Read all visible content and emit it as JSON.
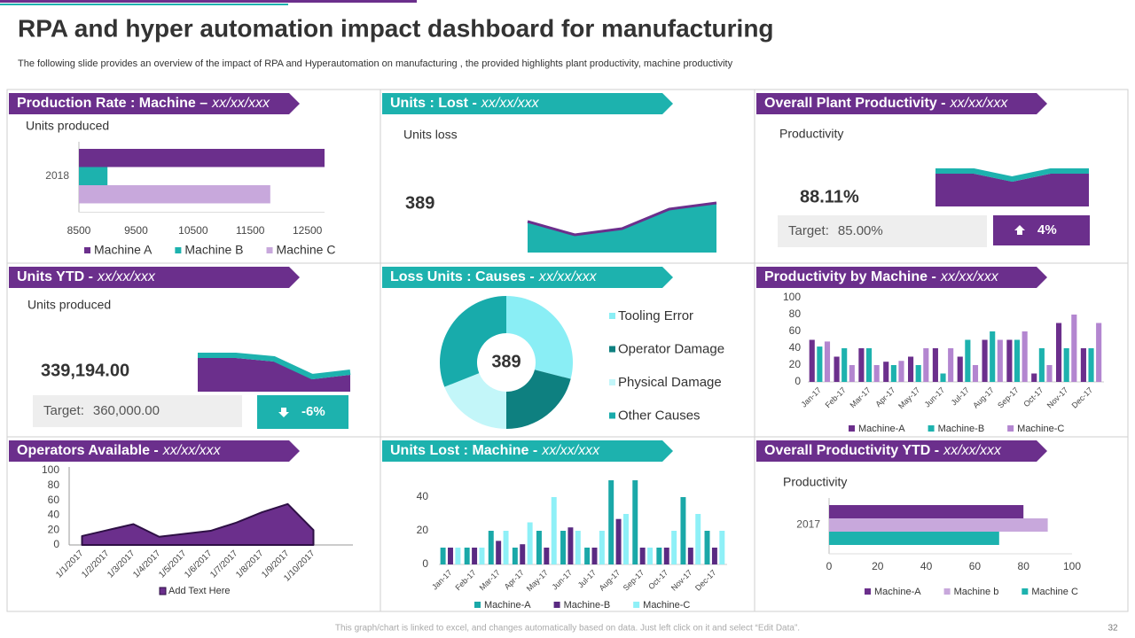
{
  "header": {
    "title": "RPA and hyper automation impact dashboard for manufacturing",
    "subtitle": "The following slide provides an overview of the impact of RPA and Hyperautomation  on manufacturing , the provided highlights plant productivity, machine productivity"
  },
  "chart_data": [
    {
      "type": "hbar",
      "title": "Production Rate : Machine –",
      "date": "xx/xx/xxx",
      "ylabel": "Units produced",
      "categories": [
        "2018"
      ],
      "series": [
        {
          "name": "Machine A",
          "color": "#6b2f8c",
          "values": [
            12800
          ]
        },
        {
          "name": "Machine B",
          "color": "#1db2ae",
          "values": [
            9000
          ]
        },
        {
          "name": "Machine C",
          "color": "#c8a8dc",
          "values": [
            11850
          ]
        }
      ],
      "xlim": [
        8500,
        12800
      ],
      "xticks": [
        8500,
        9500,
        10500,
        11500,
        12500
      ]
    },
    {
      "type": "kpi-area",
      "title": "Units : Lost -",
      "date": "xx/xx/xxx",
      "label": "Units loss",
      "kpi": "389",
      "values": [
        35,
        20,
        27,
        49,
        56
      ],
      "ylim": [
        0,
        60
      ],
      "color": "#1db2ae",
      "line_color": "#6b2f8c"
    },
    {
      "type": "kpi-area",
      "title": "Overall Plant Productivity -",
      "date": "xx/xx/xxx",
      "label": "Productivity",
      "kpi": "88.11%",
      "target_label": "Target:",
      "target": "85.00%",
      "change": "4%",
      "direction": "up",
      "badge_color": "#6b2f8c",
      "values": [
        37,
        37,
        28,
        37,
        37
      ],
      "ylim": [
        0,
        40
      ],
      "color": "#6b2f8c",
      "line_color": "#1db2ae"
    },
    {
      "type": "kpi-area",
      "title": "Units YTD -",
      "date": "xx/xx/xxx",
      "label": "Units produced",
      "kpi": "339,194.00",
      "target_label": "Target:",
      "target": "360,000.00",
      "change": "-6%",
      "direction": "down",
      "badge_color": "#1db2ae",
      "values": [
        38,
        38,
        34,
        14,
        19
      ],
      "ylim": [
        0,
        40
      ],
      "color": "#6b2f8c",
      "line_color": "#1db2ae"
    },
    {
      "type": "donut",
      "title": "Loss Units : Causes -",
      "date": "xx/xx/xxx",
      "center_label": "389",
      "categories": [
        "Tooling Error",
        "Operator Damage",
        "Physical Damage",
        "Other Causes"
      ],
      "values": [
        29,
        21,
        19,
        31
      ],
      "colors": [
        "#8aeef5",
        "#0e8080",
        "#c3f6f9",
        "#18abab"
      ]
    },
    {
      "type": "grouped-bar",
      "title": "Productivity by Machine -",
      "date": "xx/xx/xxx",
      "categories": [
        "Jan-17",
        "Feb-17",
        "Mar-17",
        "Apr-17",
        "May-17",
        "Jun-17",
        "Jul-17",
        "Aug-17",
        "Sep-17",
        "Oct-17",
        "Nov-17",
        "Dec-17"
      ],
      "series": [
        {
          "name": "Machine-A",
          "color": "#6b2f8c",
          "values": [
            50,
            30,
            40,
            24,
            30,
            40,
            30,
            50,
            50,
            10,
            70,
            40
          ]
        },
        {
          "name": "Machine-B",
          "color": "#1db2ae",
          "values": [
            42,
            40,
            40,
            20,
            20,
            10,
            50,
            60,
            50,
            40,
            40,
            40
          ]
        },
        {
          "name": "Machine-C",
          "color": "#b386d0",
          "values": [
            48,
            20,
            20,
            25,
            40,
            40,
            20,
            50,
            60,
            20,
            80,
            70
          ]
        }
      ],
      "ylim": [
        0,
        100
      ],
      "yticks": [
        0,
        20,
        40,
        60,
        80,
        100
      ]
    },
    {
      "type": "area",
      "title": "Operators Available  -",
      "date": "xx/xx/xxx",
      "categories": [
        "1/1/2017",
        "1/2/2017",
        "1/3/2017",
        "1/4/2017",
        "1/5/2017",
        "1/6/2017",
        "1/7/2017",
        "1/8/2017",
        "1/9/2017",
        "1/10/2017"
      ],
      "series": [
        {
          "name": "Add Text Here",
          "color": "#6b2f8c",
          "line_color": "#2e1045",
          "values": [
            12,
            20,
            28,
            11,
            15,
            19,
            30,
            44,
            55,
            20
          ]
        }
      ],
      "ylim": [
        0,
        100
      ],
      "yticks": [
        0,
        20,
        40,
        60,
        80,
        100
      ]
    },
    {
      "type": "grouped-bar",
      "title": "Units Lost : Machine -",
      "date": "xx/xx/xxx",
      "categories": [
        "Jan-17",
        "Feb-17",
        "Mar-17",
        "Apr-17",
        "May-17",
        "Jun-17",
        "Jul-17",
        "Aug-17",
        "Sep-17",
        "Oct-17",
        "Nov-17",
        "Dec-17"
      ],
      "series": [
        {
          "name": "Machine-A",
          "color": "#1aa8a8",
          "values": [
            10,
            10,
            20,
            10,
            20,
            20,
            10,
            50,
            50,
            10,
            40,
            20
          ]
        },
        {
          "name": "Machine-B",
          "color": "#5a2a82",
          "values": [
            10,
            10,
            14,
            12,
            10,
            22,
            10,
            27,
            10,
            10,
            10,
            10
          ]
        },
        {
          "name": "Machine-C",
          "color": "#8ef0f7",
          "values": [
            10,
            10,
            20,
            25,
            40,
            20,
            20,
            30,
            10,
            20,
            30,
            20
          ]
        }
      ],
      "ylim": [
        0,
        50
      ],
      "yticks": [
        0,
        20,
        40
      ]
    },
    {
      "type": "hbar",
      "title": "Overall Productivity YTD -",
      "date": "xx/xx/xxx",
      "ylabel": "Productivity",
      "categories": [
        "2017"
      ],
      "series": [
        {
          "name": "Machine-A",
          "color": "#6b2f8c",
          "values": [
            80
          ]
        },
        {
          "name": "Machine b",
          "color": "#c8a8dc",
          "values": [
            90
          ]
        },
        {
          "name": "Machine C",
          "color": "#1db2ae",
          "values": [
            70
          ]
        }
      ],
      "xlim": [
        0,
        100
      ],
      "xticks": [
        0,
        20,
        40,
        60,
        80,
        100
      ]
    }
  ],
  "footer": {
    "note": "This graph/chart is linked to excel, and changes automatically based on data. Just left click on it and select “Edit Data”.",
    "page": "32"
  }
}
